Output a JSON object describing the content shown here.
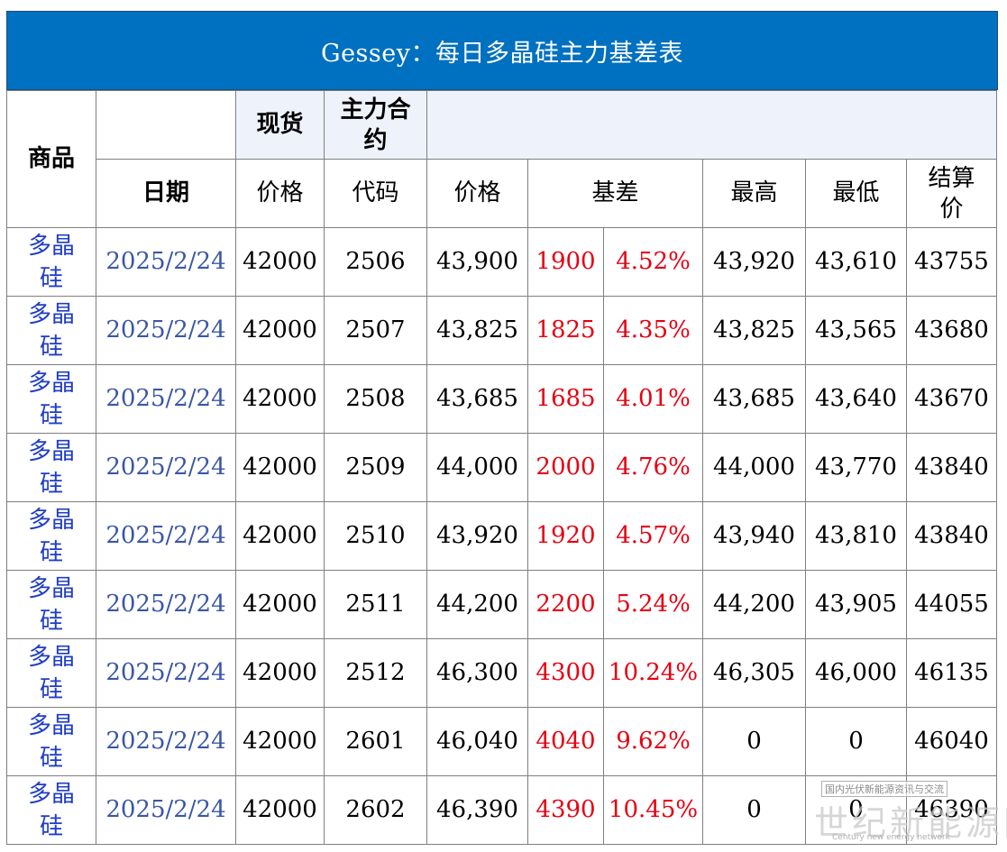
{
  "title": "Gessey：每日多晶硅主力基差表",
  "headers": {
    "product": "商品",
    "spot": "现货",
    "main_contract": "主力合约",
    "date": "日期",
    "spot_price": "价格",
    "code": "代码",
    "futures_price": "价格",
    "basis": "基差",
    "high": "最高",
    "low": "最低",
    "settlement": "结算价"
  },
  "rows": [
    {
      "product": "多晶硅",
      "date": "2025/2/24",
      "spot": "42000",
      "code": "2506",
      "price": "43,900",
      "basis": "1900",
      "basis_pct": "4.52%",
      "high": "43,920",
      "low": "43,610",
      "settle": "43755"
    },
    {
      "product": "多晶硅",
      "date": "2025/2/24",
      "spot": "42000",
      "code": "2507",
      "price": "43,825",
      "basis": "1825",
      "basis_pct": "4.35%",
      "high": "43,825",
      "low": "43,565",
      "settle": "43680"
    },
    {
      "product": "多晶硅",
      "date": "2025/2/24",
      "spot": "42000",
      "code": "2508",
      "price": "43,685",
      "basis": "1685",
      "basis_pct": "4.01%",
      "high": "43,685",
      "low": "43,640",
      "settle": "43670"
    },
    {
      "product": "多晶硅",
      "date": "2025/2/24",
      "spot": "42000",
      "code": "2509",
      "price": "44,000",
      "basis": "2000",
      "basis_pct": "4.76%",
      "high": "44,000",
      "low": "43,770",
      "settle": "43840"
    },
    {
      "product": "多晶硅",
      "date": "2025/2/24",
      "spot": "42000",
      "code": "2510",
      "price": "43,920",
      "basis": "1920",
      "basis_pct": "4.57%",
      "high": "43,940",
      "low": "43,810",
      "settle": "43840"
    },
    {
      "product": "多晶硅",
      "date": "2025/2/24",
      "spot": "42000",
      "code": "2511",
      "price": "44,200",
      "basis": "2200",
      "basis_pct": "5.24%",
      "high": "44,200",
      "low": "43,905",
      "settle": "44055"
    },
    {
      "product": "多晶硅",
      "date": "2025/2/24",
      "spot": "42000",
      "code": "2512",
      "price": "46,300",
      "basis": "4300",
      "basis_pct": "10.24%",
      "high": "46,305",
      "low": "46,000",
      "settle": "46135"
    },
    {
      "product": "多晶硅",
      "date": "2025/2/24",
      "spot": "42000",
      "code": "2601",
      "price": "46,040",
      "basis": "4040",
      "basis_pct": "9.62%",
      "high": "0",
      "low": "0",
      "settle": "46040"
    },
    {
      "product": "多晶硅",
      "date": "2025/2/24",
      "spot": "42000",
      "code": "2602",
      "price": "46,390",
      "basis": "4390",
      "basis_pct": "10.45%",
      "high": "0",
      "low": "0",
      "settle": "46390"
    }
  ],
  "watermark": {
    "small": "国内光伏新能源资讯与交流",
    "big": "世纪新能源网",
    "en": "Century new energy network"
  },
  "colors": {
    "title_bg": "#0070c0",
    "product_text": "#1f3dc7",
    "date_text": "#3a56a8",
    "basis_text": "#e60012"
  }
}
